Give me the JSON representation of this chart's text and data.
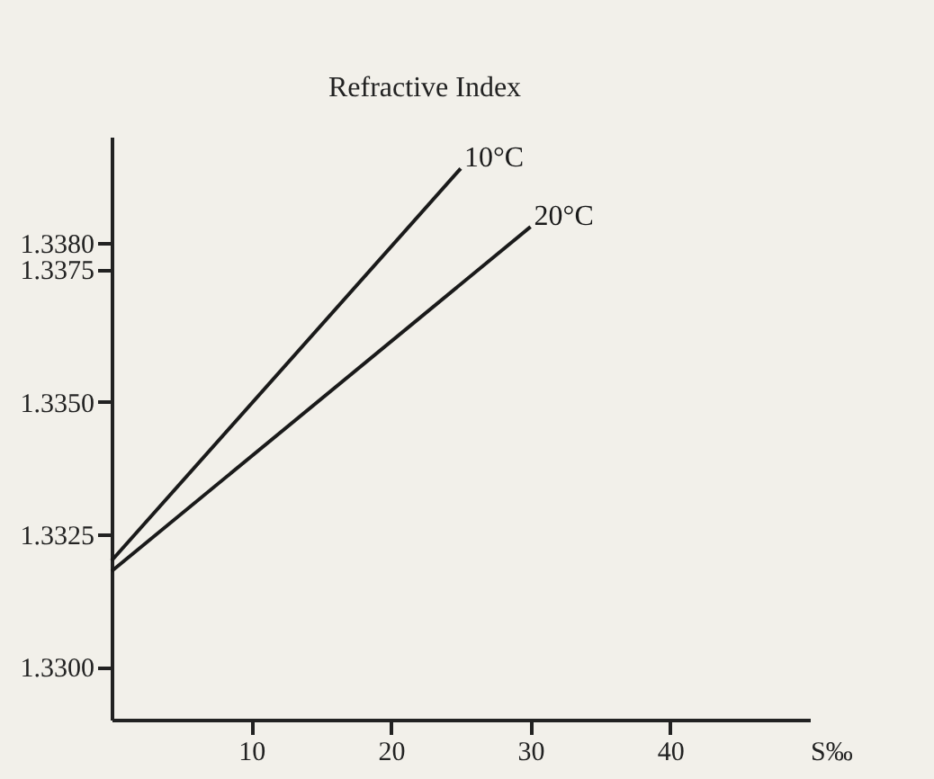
{
  "chart_data": {
    "type": "line",
    "ylabel": "Refractive Index",
    "xlabel": "S‰",
    "xlim": [
      0,
      50
    ],
    "xticks": [
      10,
      20,
      30,
      40
    ],
    "ylim": [
      1.329,
      1.34
    ],
    "yticks": [
      {
        "value": 1.33,
        "label": "1.3300"
      },
      1.3325,
      {
        "value": 1.335,
        "label": "1.3350"
      },
      1.3375,
      {
        "value": 1.338,
        "label": "1.3380"
      }
    ],
    "series": [
      {
        "name": "10°C",
        "color": "#1a1a1a",
        "x": [
          0,
          25
        ],
        "values": [
          1.332,
          1.3394
        ]
      },
      {
        "name": "20°C",
        "color": "#1a1a1a",
        "x": [
          0,
          30
        ],
        "values": [
          1.3318,
          1.3383
        ]
      }
    ],
    "grid": false,
    "legend": false,
    "line_style": "solid"
  }
}
